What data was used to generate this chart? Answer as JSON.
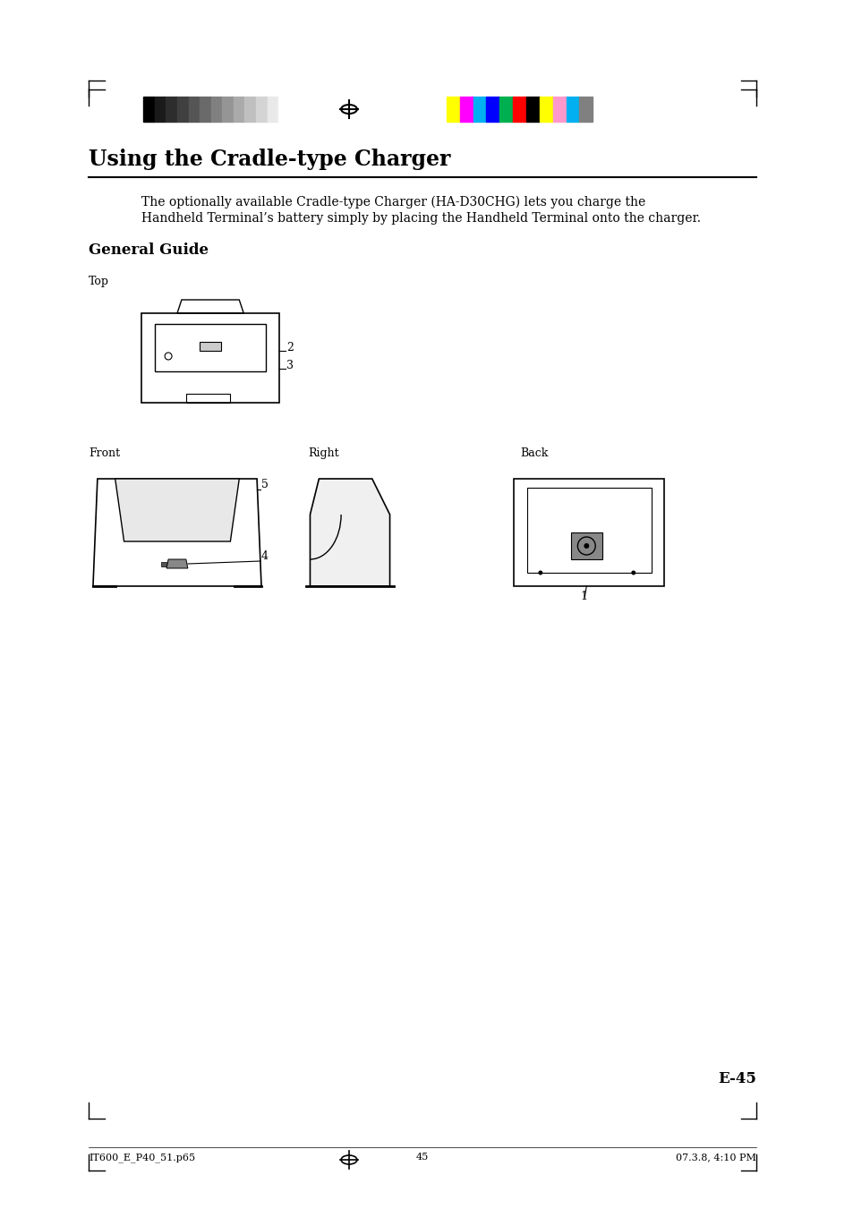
{
  "title": "Using the Cradle-type Charger",
  "subtitle": "The optionally available Cradle-type Charger (HA-D30CHG) lets you charge the\nHandheld Terminal’s battery simply by placing the Handheld Terminal onto the charger.",
  "section_header": "General Guide",
  "page_number": "E-45",
  "footer_left": "IT600_E_P40_51.p65",
  "footer_center": "45",
  "footer_right": "07.3.8, 4:10 PM",
  "bg_color": "#ffffff",
  "text_color": "#000000",
  "grayscale_colors": [
    "#000000",
    "#1a1a1a",
    "#2d2d2d",
    "#404040",
    "#555555",
    "#6a6a6a",
    "#808080",
    "#959595",
    "#aaaaaa",
    "#bfbfbf",
    "#d4d4d4",
    "#e9e9e9",
    "#ffffff"
  ],
  "color_swatches": [
    "#ffff00",
    "#ff00ff",
    "#00b0f0",
    "#0000ff",
    "#00b050",
    "#ff0000",
    "#000000",
    "#ffff00",
    "#ff99cc",
    "#00b0f0",
    "#808080"
  ],
  "label_top": "Top",
  "label_front": "Front",
  "label_right": "Right",
  "label_back": "Back",
  "part_labels": [
    "1",
    "2",
    "3",
    "4",
    "5"
  ]
}
